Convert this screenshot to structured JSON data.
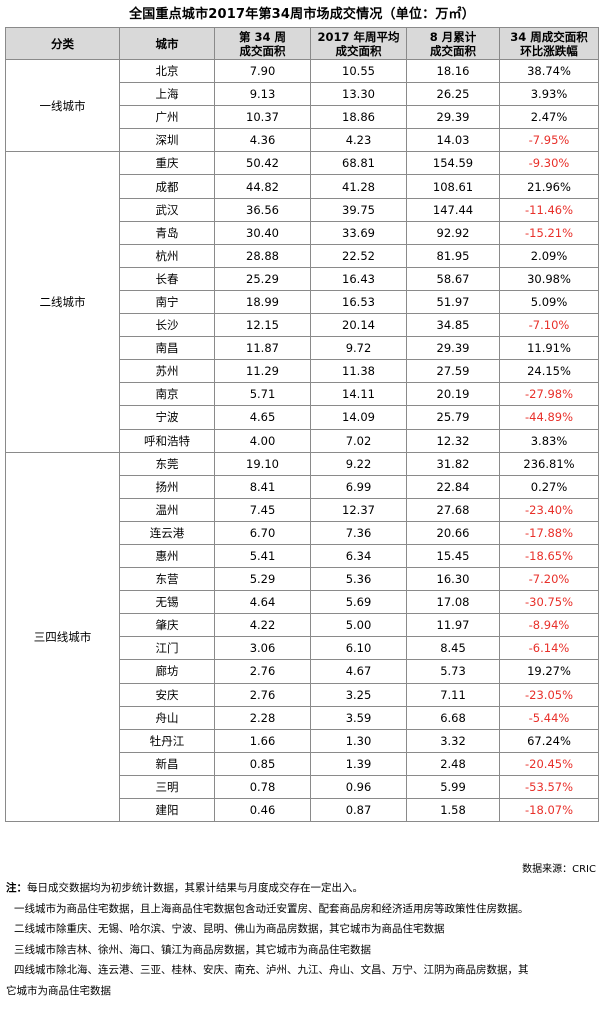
{
  "title": "全国重点城市2017年第34周市场成交情况（单位：万㎡）",
  "headers": {
    "category": "分类",
    "city": "城市",
    "week34_line1": "第 34 周",
    "week34_line2": "成交面积",
    "avg_line1": "2017 年周平均",
    "avg_line2": "成交面积",
    "aug_line1": "8 月累计",
    "aug_line2": "成交面积",
    "change_line1": "34 周成交面积",
    "change_line2": "环比涨跌幅"
  },
  "categories": [
    "一线城市",
    "二线城市",
    "三四线城市"
  ],
  "rows": [
    {
      "city": "北京",
      "week": "7.90",
      "avg": "10.55",
      "aug": "18.16",
      "change": "38.74%",
      "neg": false
    },
    {
      "city": "上海",
      "week": "9.13",
      "avg": "13.30",
      "aug": "26.25",
      "change": "3.93%",
      "neg": false
    },
    {
      "city": "广州",
      "week": "10.37",
      "avg": "18.86",
      "aug": "29.39",
      "change": "2.47%",
      "neg": false
    },
    {
      "city": "深圳",
      "week": "4.36",
      "avg": "4.23",
      "aug": "14.03",
      "change": "-7.95%",
      "neg": true
    },
    {
      "city": "重庆",
      "week": "50.42",
      "avg": "68.81",
      "aug": "154.59",
      "change": "-9.30%",
      "neg": true
    },
    {
      "city": "成都",
      "week": "44.82",
      "avg": "41.28",
      "aug": "108.61",
      "change": "21.96%",
      "neg": false
    },
    {
      "city": "武汉",
      "week": "36.56",
      "avg": "39.75",
      "aug": "147.44",
      "change": "-11.46%",
      "neg": true
    },
    {
      "city": "青岛",
      "week": "30.40",
      "avg": "33.69",
      "aug": "92.92",
      "change": "-15.21%",
      "neg": true
    },
    {
      "city": "杭州",
      "week": "28.88",
      "avg": "22.52",
      "aug": "81.95",
      "change": "2.09%",
      "neg": false
    },
    {
      "city": "长春",
      "week": "25.29",
      "avg": "16.43",
      "aug": "58.67",
      "change": "30.98%",
      "neg": false
    },
    {
      "city": "南宁",
      "week": "18.99",
      "avg": "16.53",
      "aug": "51.97",
      "change": "5.09%",
      "neg": false
    },
    {
      "city": "长沙",
      "week": "12.15",
      "avg": "20.14",
      "aug": "34.85",
      "change": "-7.10%",
      "neg": true
    },
    {
      "city": "南昌",
      "week": "11.87",
      "avg": "9.72",
      "aug": "29.39",
      "change": "11.91%",
      "neg": false
    },
    {
      "city": "苏州",
      "week": "11.29",
      "avg": "11.38",
      "aug": "27.59",
      "change": "24.15%",
      "neg": false
    },
    {
      "city": "南京",
      "week": "5.71",
      "avg": "14.11",
      "aug": "20.19",
      "change": "-27.98%",
      "neg": true
    },
    {
      "city": "宁波",
      "week": "4.65",
      "avg": "14.09",
      "aug": "25.79",
      "change": "-44.89%",
      "neg": true
    },
    {
      "city": "呼和浩特",
      "week": "4.00",
      "avg": "7.02",
      "aug": "12.32",
      "change": "3.83%",
      "neg": false
    },
    {
      "city": "东莞",
      "week": "19.10",
      "avg": "9.22",
      "aug": "31.82",
      "change": "236.81%",
      "neg": false
    },
    {
      "city": "扬州",
      "week": "8.41",
      "avg": "6.99",
      "aug": "22.84",
      "change": "0.27%",
      "neg": false
    },
    {
      "city": "温州",
      "week": "7.45",
      "avg": "12.37",
      "aug": "27.68",
      "change": "-23.40%",
      "neg": true
    },
    {
      "city": "连云港",
      "week": "6.70",
      "avg": "7.36",
      "aug": "20.66",
      "change": "-17.88%",
      "neg": true
    },
    {
      "city": "惠州",
      "week": "5.41",
      "avg": "6.34",
      "aug": "15.45",
      "change": "-18.65%",
      "neg": true
    },
    {
      "city": "东营",
      "week": "5.29",
      "avg": "5.36",
      "aug": "16.30",
      "change": "-7.20%",
      "neg": true
    },
    {
      "city": "无锡",
      "week": "4.64",
      "avg": "5.69",
      "aug": "17.08",
      "change": "-30.75%",
      "neg": true
    },
    {
      "city": "肇庆",
      "week": "4.22",
      "avg": "5.00",
      "aug": "11.97",
      "change": "-8.94%",
      "neg": true
    },
    {
      "city": "江门",
      "week": "3.06",
      "avg": "6.10",
      "aug": "8.45",
      "change": "-6.14%",
      "neg": true
    },
    {
      "city": "廊坊",
      "week": "2.76",
      "avg": "4.67",
      "aug": "5.73",
      "change": "19.27%",
      "neg": false
    },
    {
      "city": "安庆",
      "week": "2.76",
      "avg": "3.25",
      "aug": "7.11",
      "change": "-23.05%",
      "neg": true
    },
    {
      "city": "舟山",
      "week": "2.28",
      "avg": "3.59",
      "aug": "6.68",
      "change": "-5.44%",
      "neg": true
    },
    {
      "city": "牡丹江",
      "week": "1.66",
      "avg": "1.30",
      "aug": "3.32",
      "change": "67.24%",
      "neg": false
    },
    {
      "city": "新昌",
      "week": "0.85",
      "avg": "1.39",
      "aug": "2.48",
      "change": "-20.45%",
      "neg": true
    },
    {
      "city": "三明",
      "week": "0.78",
      "avg": "0.96",
      "aug": "5.99",
      "change": "-53.57%",
      "neg": true
    },
    {
      "city": "建阳",
      "week": "0.46",
      "avg": "0.87",
      "aug": "1.58",
      "change": "-18.07%",
      "neg": true
    }
  ],
  "source": "数据来源：CRIC",
  "notes": {
    "label": "注：",
    "line1": "每日成交数据均为初步统计数据，其累计结果与月度成交存在一定出入。",
    "line2": "一线城市为商品住宅数据，且上海商品住宅数据包含动迁安置房、配套商品房和经济适用房等政策性住房数据。",
    "line3": "二线城市除重庆、无锡、哈尔滨、宁波、昆明、佛山为商品房数据，其它城市为商品住宅数据",
    "line4": "三线城市除吉林、徐州、海口、镇江为商品房数据，其它城市为商品住宅数据",
    "line5": "四线城市除北海、连云港、三亚、桂林、安庆、南充、泸州、九江、舟山、文昌、万宁、江阴为商品房数据，其",
    "line6": "它城市为商品住宅数据"
  },
  "colors": {
    "header_bg": "#d9d9d9",
    "negative": "#e8302a",
    "border": "#8a8a8a"
  }
}
